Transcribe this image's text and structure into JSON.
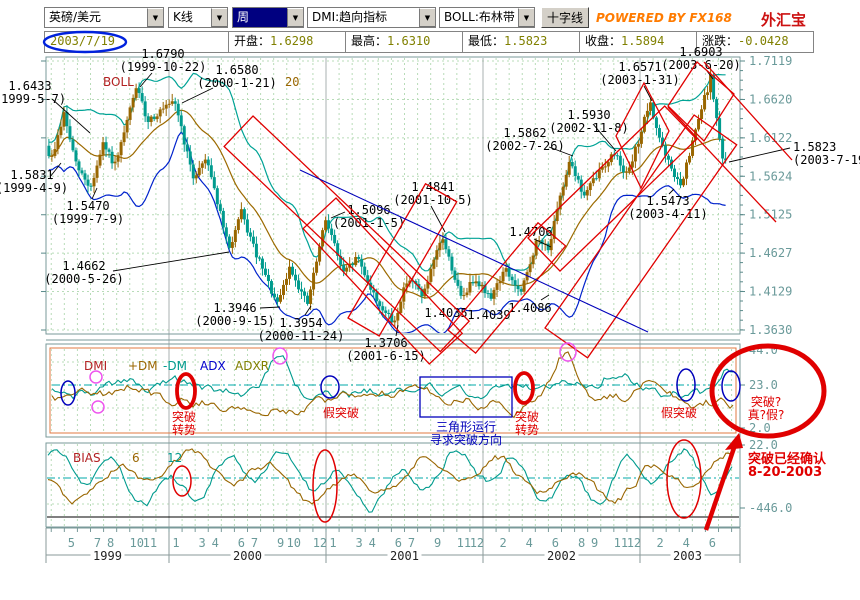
{
  "toolbar": {
    "symbol": "英磅/美元",
    "chart_type": "K线",
    "period": "周",
    "indicator_trend": "DMI:趋向指标",
    "indicator_band": "BOLL:布林带",
    "crosshair_button": "十字线",
    "powered_by": "POWERED BY FX168",
    "brand": "外汇宝"
  },
  "info_bar": {
    "date": "2003/7/19",
    "fields": [
      {
        "label": "开盘：",
        "value": "1.6298"
      },
      {
        "label": "最高：",
        "value": "1.6310"
      },
      {
        "label": "最低：",
        "value": "1.5823"
      },
      {
        "label": "收盘：",
        "value": "1.5894"
      },
      {
        "label": "涨跌：",
        "value": "-0.0428"
      }
    ]
  },
  "chart_data": {
    "type": "candlestick",
    "title": "英磅/美元 周K线 GBP/USD weekly with BOLL, DMI, BIAS",
    "overlay": {
      "name": "BOLL",
      "period_label": "20"
    },
    "y_axis_ticks": [
      "1.7119",
      "1.6620",
      "1.6122",
      "1.5624",
      "1.5125",
      "1.4627",
      "1.4129",
      "1.3630"
    ],
    "x_axis": {
      "years": [
        "1999",
        "2000",
        "2001",
        "2002",
        "2003"
      ],
      "month_labels": {
        "1999": [
          5,
          7,
          8,
          10,
          11
        ],
        "2000": [
          1,
          3,
          4,
          6,
          7,
          9,
          10,
          12
        ],
        "2001": [
          1,
          3,
          4,
          6,
          7,
          9,
          11,
          12
        ],
        "2002": [
          2,
          4,
          6,
          8,
          9,
          11,
          12
        ],
        "2003": [
          2,
          4,
          6
        ]
      }
    },
    "last_bar": {
      "date": "2003/7/19",
      "open": 1.6298,
      "high": 1.631,
      "low": 1.5823,
      "close": 1.5894,
      "change": -0.0428
    },
    "key_points": [
      {
        "price": "1.6433",
        "date": "1999-5-7"
      },
      {
        "price": "1.5831",
        "date": "1999-4-9"
      },
      {
        "price": "1.5470",
        "date": "1999-7-9"
      },
      {
        "price": "1.6790",
        "date": "1999-10-22"
      },
      {
        "price": "1.6580",
        "date": "2000-1-21"
      },
      {
        "price": "1.4662",
        "date": "2000-5-26"
      },
      {
        "price": "1.3946",
        "date": "2000-9-15"
      },
      {
        "price": "1.3954",
        "date": "2000-11-24"
      },
      {
        "price": "1.5096",
        "date": "2001-1-5"
      },
      {
        "price": "1.4841",
        "date": "2001-10-5"
      },
      {
        "price": "1.3706",
        "date": "2001-6-15"
      },
      {
        "price": "1.4035",
        "date": null
      },
      {
        "price": "1.4039",
        "date": null
      },
      {
        "price": "1.4086",
        "date": null
      },
      {
        "price": "1.4706",
        "date": null
      },
      {
        "price": "1.5862",
        "date": "2002-7-26"
      },
      {
        "price": "1.5930",
        "date": "2002-11-8"
      },
      {
        "price": "1.6571",
        "date": "2003-1-31"
      },
      {
        "price": "1.6903",
        "date": "2003-6-20"
      },
      {
        "price": "1.5473",
        "date": "2003-4-11"
      },
      {
        "price": "1.5823",
        "date": "2003-7-19"
      }
    ],
    "trend_anchors": [
      [
        1999.235,
        1.602
      ],
      [
        1999.27,
        1.5831
      ],
      [
        1999.35,
        1.6433
      ],
      [
        1999.43,
        1.575
      ],
      [
        1999.52,
        1.547
      ],
      [
        1999.6,
        1.603
      ],
      [
        1999.68,
        1.575
      ],
      [
        1999.81,
        1.679
      ],
      [
        1999.88,
        1.635
      ],
      [
        1999.98,
        1.648
      ],
      [
        2000.06,
        1.658
      ],
      [
        2000.17,
        1.56
      ],
      [
        2000.26,
        1.588
      ],
      [
        2000.4,
        1.4662
      ],
      [
        2000.48,
        1.515
      ],
      [
        2000.57,
        1.463
      ],
      [
        2000.71,
        1.3946
      ],
      [
        2000.79,
        1.445
      ],
      [
        2000.9,
        1.3954
      ],
      [
        2001.02,
        1.5096
      ],
      [
        2001.13,
        1.435
      ],
      [
        2001.22,
        1.458
      ],
      [
        2001.33,
        1.405
      ],
      [
        2001.45,
        1.3706
      ],
      [
        2001.54,
        1.432
      ],
      [
        2001.64,
        1.408
      ],
      [
        2001.76,
        1.4841
      ],
      [
        2001.88,
        1.4035
      ],
      [
        2001.97,
        1.432
      ],
      [
        2002.06,
        1.4039
      ],
      [
        2002.16,
        1.442
      ],
      [
        2002.26,
        1.4086
      ],
      [
        2002.36,
        1.478
      ],
      [
        2002.44,
        1.4706
      ],
      [
        2002.57,
        1.5862
      ],
      [
        2002.66,
        1.536
      ],
      [
        2002.78,
        1.575
      ],
      [
        2002.86,
        1.593
      ],
      [
        2002.94,
        1.562
      ],
      [
        2003.08,
        1.6571
      ],
      [
        2003.18,
        1.588
      ],
      [
        2003.28,
        1.5473
      ],
      [
        2003.4,
        1.642
      ],
      [
        2003.47,
        1.6903
      ],
      [
        2003.545,
        1.5823
      ]
    ],
    "panels": [
      {
        "name": "DMI",
        "legend": [
          "DMI",
          "+DM",
          "-DM",
          "ADX",
          "ADXR"
        ],
        "axis_ticks": [
          "44.0",
          "23.0",
          "2.0"
        ]
      },
      {
        "name": "BIAS",
        "legend": [
          "BIAS",
          "6",
          "12"
        ],
        "axis_ticks": [
          "22.0",
          "-446.0"
        ]
      }
    ],
    "colors": {
      "up_candle": "#996600",
      "down_candle": "#009b8e",
      "boll_upper": "#00a396",
      "boll_mid": "#9c6a00",
      "boll_lower": "#0022cc",
      "grid": "#b8dcb8",
      "axis_text": "#6a9a9a",
      "annotation_red": "#e00000",
      "annotation_blue": "#0000bb",
      "annotation_magenta": "#ee55ee",
      "dmi_frame": "#e07840"
    }
  },
  "hand_annotations": {
    "breakout_reversal_1": [
      "突破",
      "转势"
    ],
    "false_breakout_1": "假突破",
    "triangle_note": [
      "三角形运行",
      "寻求突破方向"
    ],
    "breakout_reversal_2": [
      "突破",
      "转势"
    ],
    "false_breakout_2": "假突破",
    "breakout_question": [
      "突破?",
      "真?假?"
    ],
    "breakout_confirmed": [
      "突破已经确认",
      "8-20-2003"
    ]
  }
}
